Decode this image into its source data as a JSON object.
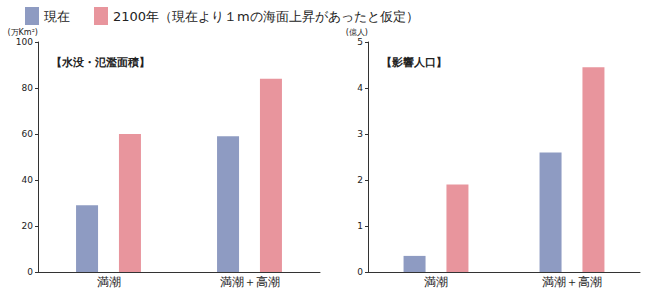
{
  "chart_data": [
    {
      "type": "bar",
      "title": "【水没・氾濫面積】",
      "y_label": "(万Km²)",
      "categories": [
        "満潮",
        "満潮＋高潮"
      ],
      "series": [
        {
          "name": "現在",
          "color": "#8e9bc2",
          "values": [
            29,
            59
          ]
        },
        {
          "name": "2100年（現在より１mの海面上昇があったと仮定）",
          "color": "#e8959d",
          "values": [
            60,
            84
          ]
        }
      ],
      "ylim": [
        0,
        100
      ],
      "yticks": [
        0,
        20,
        40,
        60,
        80,
        100
      ],
      "grid": false,
      "legend": "top-left"
    },
    {
      "type": "bar",
      "title": "【影響人口】",
      "y_label": "(億人)",
      "categories": [
        "満潮",
        "満潮＋高潮"
      ],
      "series": [
        {
          "name": "現在",
          "color": "#8e9bc2",
          "values": [
            0.35,
            2.6
          ]
        },
        {
          "name": "2100年（現在より１mの海面上昇があったと仮定）",
          "color": "#e8959d",
          "values": [
            1.9,
            4.45
          ]
        }
      ],
      "ylim": [
        0,
        5
      ],
      "yticks": [
        0,
        1,
        2,
        3,
        4,
        5
      ],
      "grid": false
    }
  ]
}
